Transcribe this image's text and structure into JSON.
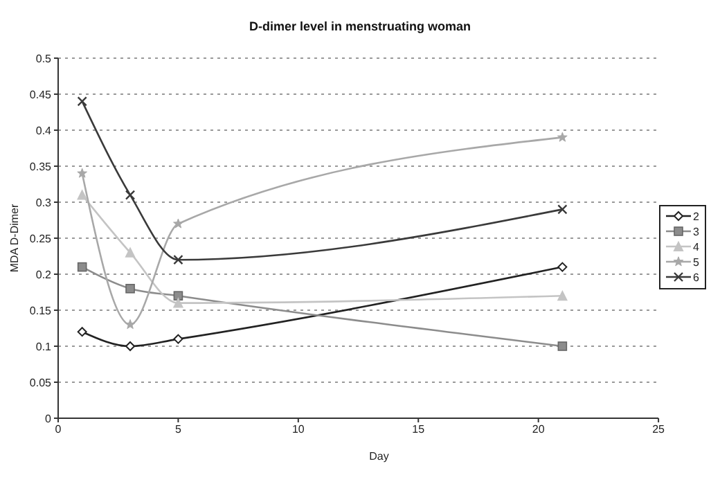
{
  "chart_data": {
    "type": "line",
    "title": "D-dimer level in menstruating woman",
    "xlabel": "Day",
    "ylabel": "MDA D-Dimer",
    "x": [
      1,
      3,
      5,
      21
    ],
    "series": [
      {
        "name": "2",
        "color": "#222222",
        "values": [
          0.12,
          0.1,
          0.11,
          0.21
        ],
        "marker": "diamond"
      },
      {
        "name": "3",
        "color": "#8c8c8c",
        "values": [
          0.21,
          0.18,
          0.17,
          0.1
        ],
        "marker": "square"
      },
      {
        "name": "4",
        "color": "#c4c4c4",
        "values": [
          0.31,
          0.23,
          0.16,
          0.17
        ],
        "marker": "triangle"
      },
      {
        "name": "5",
        "color": "#a8a8a8",
        "values": [
          0.34,
          0.13,
          0.27,
          0.39
        ],
        "marker": "star"
      },
      {
        "name": "6",
        "color": "#3a3a3a",
        "values": [
          0.44,
          0.31,
          0.22,
          0.29
        ],
        "marker": "cross"
      }
    ],
    "xlim": [
      0,
      25
    ],
    "xticks": [
      0,
      5,
      10,
      15,
      20,
      25
    ],
    "ylim": [
      0,
      0.5
    ],
    "yticks": [
      0,
      0.05,
      0.1,
      0.15,
      0.2,
      0.25,
      0.3,
      0.35,
      0.4,
      0.45,
      0.5
    ],
    "grid": "y",
    "legend": "right",
    "line_style": "solid"
  }
}
